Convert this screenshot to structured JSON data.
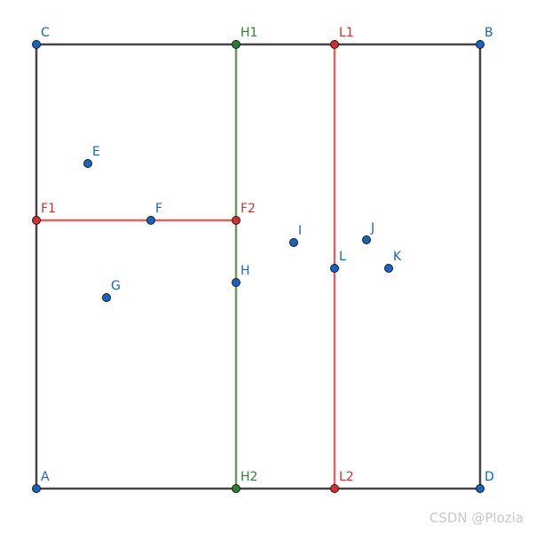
{
  "points": [
    {
      "label": "C"
    },
    {
      "label": "H1"
    },
    {
      "label": "L1"
    },
    {
      "label": "B"
    },
    {
      "label": "E"
    },
    {
      "label": "F1"
    },
    {
      "label": "F"
    },
    {
      "label": "F2"
    },
    {
      "label": "I"
    },
    {
      "label": "J"
    },
    {
      "label": "L"
    },
    {
      "label": "K"
    },
    {
      "label": "H"
    },
    {
      "label": "G"
    },
    {
      "label": "A"
    },
    {
      "label": "H2"
    },
    {
      "label": "L2"
    },
    {
      "label": "D"
    }
  ],
  "watermark": "CSDN @Plozia"
}
